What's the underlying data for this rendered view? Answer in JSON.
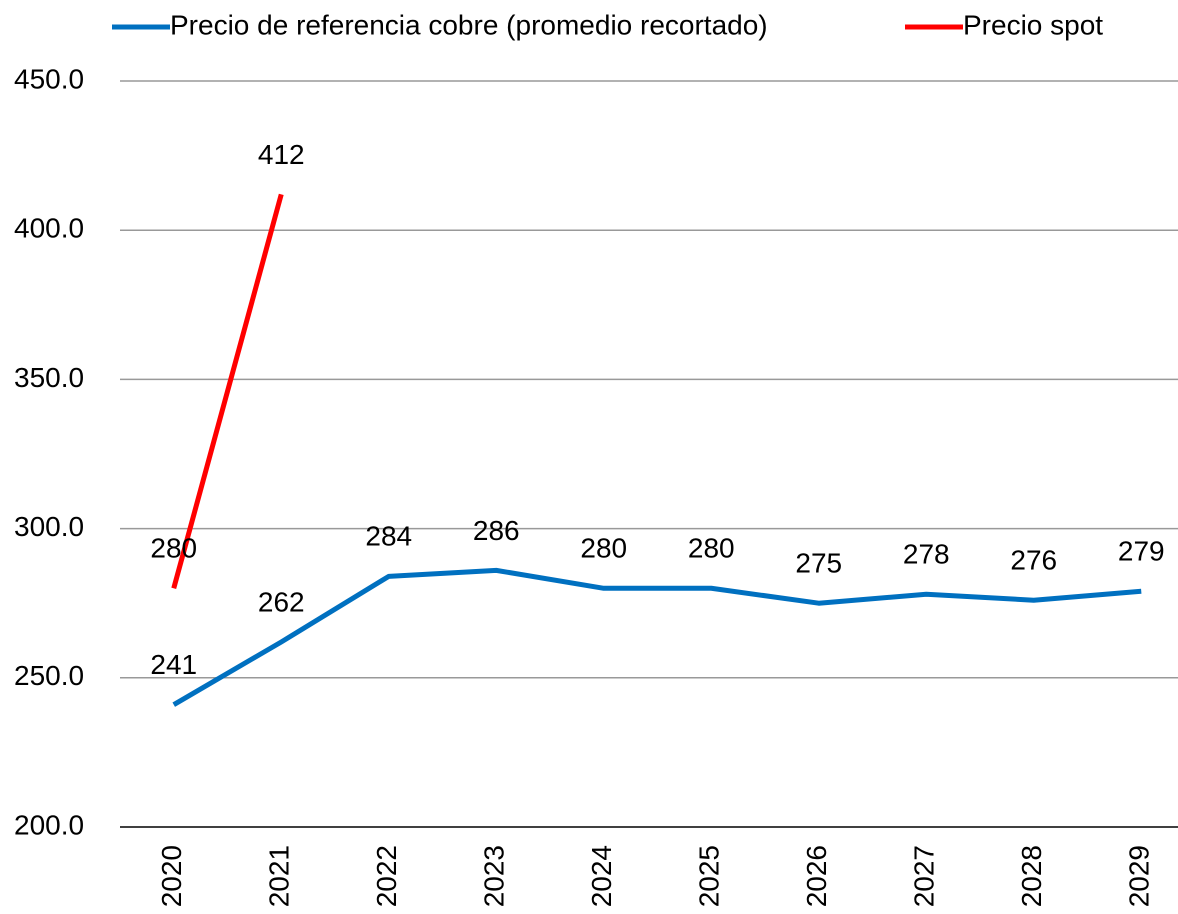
{
  "chart_data": {
    "type": "line",
    "categories": [
      "2020",
      "2021",
      "2022",
      "2023",
      "2024",
      "2025",
      "2026",
      "2027",
      "2028",
      "2029"
    ],
    "series": [
      {
        "name": "Precio de referencia cobre (promedio recortado)",
        "color": "#0070c0",
        "values": [
          241,
          262,
          284,
          286,
          280,
          280,
          275,
          278,
          276,
          279
        ]
      },
      {
        "name": "Precio spot",
        "color": "#ff0000",
        "values": [
          280,
          412,
          null,
          null,
          null,
          null,
          null,
          null,
          null,
          null
        ]
      }
    ],
    "ylim": [
      200,
      450
    ],
    "yticks": [
      {
        "value": 200,
        "label": "200.0"
      },
      {
        "value": 250,
        "label": "250.0"
      },
      {
        "value": 300,
        "label": "300.0"
      },
      {
        "value": 350,
        "label": "350.0"
      },
      {
        "value": 400,
        "label": "400.0"
      },
      {
        "value": 450,
        "label": "450.0"
      }
    ],
    "grid": true,
    "legend": "top"
  }
}
